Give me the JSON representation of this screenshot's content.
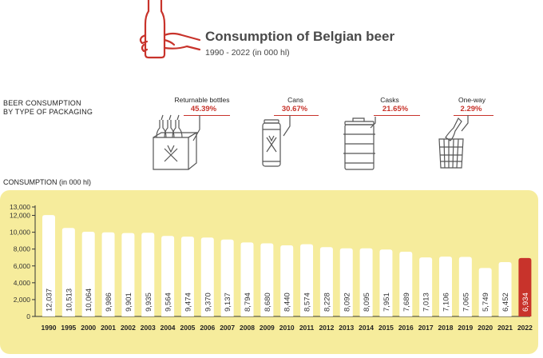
{
  "header": {
    "title": "Consumption of Belgian beer",
    "subtitle": "1990 - 2022 (in 000 hl)"
  },
  "packaging": {
    "section_label_line1": "BEER CONSUMPTION",
    "section_label_line2": "BY TYPE OF PACKAGING",
    "items": [
      {
        "name": "Returnable bottles",
        "percent": "45.39%",
        "icon": "returnable-bottle-crate-icon"
      },
      {
        "name": "Cans",
        "percent": "30.67%",
        "icon": "beer-can-icon"
      },
      {
        "name": "Casks",
        "percent": "21.65%",
        "icon": "beer-cask-icon"
      },
      {
        "name": "One-way",
        "percent": "2.29%",
        "icon": "one-way-bottle-basket-icon"
      }
    ]
  },
  "colors": {
    "accent": "#c8332b",
    "panel": "#f6ec9c",
    "bar": "#ffffff",
    "highlight_bar": "#c8332b"
  },
  "chart_data": {
    "type": "bar",
    "xlabel": "",
    "ylabel": "CONSUMPTION (in 000 hl)",
    "ylim": [
      0,
      13000
    ],
    "yticks": [
      "13,000",
      "12,000",
      "10,000",
      "8,000",
      "6,000",
      "4,000",
      "2,000",
      "0"
    ],
    "grid": false,
    "categories": [
      "1990",
      "1995",
      "2000",
      "2001",
      "2002",
      "2003",
      "2004",
      "2005",
      "2006",
      "2007",
      "2008",
      "2009",
      "2010",
      "2011",
      "2012",
      "2013",
      "2014",
      "2015",
      "2016",
      "2017",
      "2018",
      "2019",
      "2020",
      "2021",
      "2022"
    ],
    "values": [
      12037,
      10513,
      10064,
      9986,
      9901,
      9935,
      9564,
      9474,
      9370,
      9137,
      8794,
      8680,
      8440,
      8574,
      8228,
      8092,
      8095,
      7951,
      7689,
      7013,
      7106,
      7065,
      5749,
      6452,
      6934
    ],
    "value_labels": [
      "12,037",
      "10,513",
      "10,064",
      "9,986",
      "9,901",
      "9,935",
      "9,564",
      "9,474",
      "9,370",
      "9,137",
      "8,794",
      "8,680",
      "8,440",
      "8,574",
      "8,228",
      "8,092",
      "8,095",
      "7,951",
      "7,689",
      "7,013",
      "7,106",
      "7,065",
      "5,749",
      "6,452",
      "6,934"
    ],
    "highlight_category": "2022"
  }
}
